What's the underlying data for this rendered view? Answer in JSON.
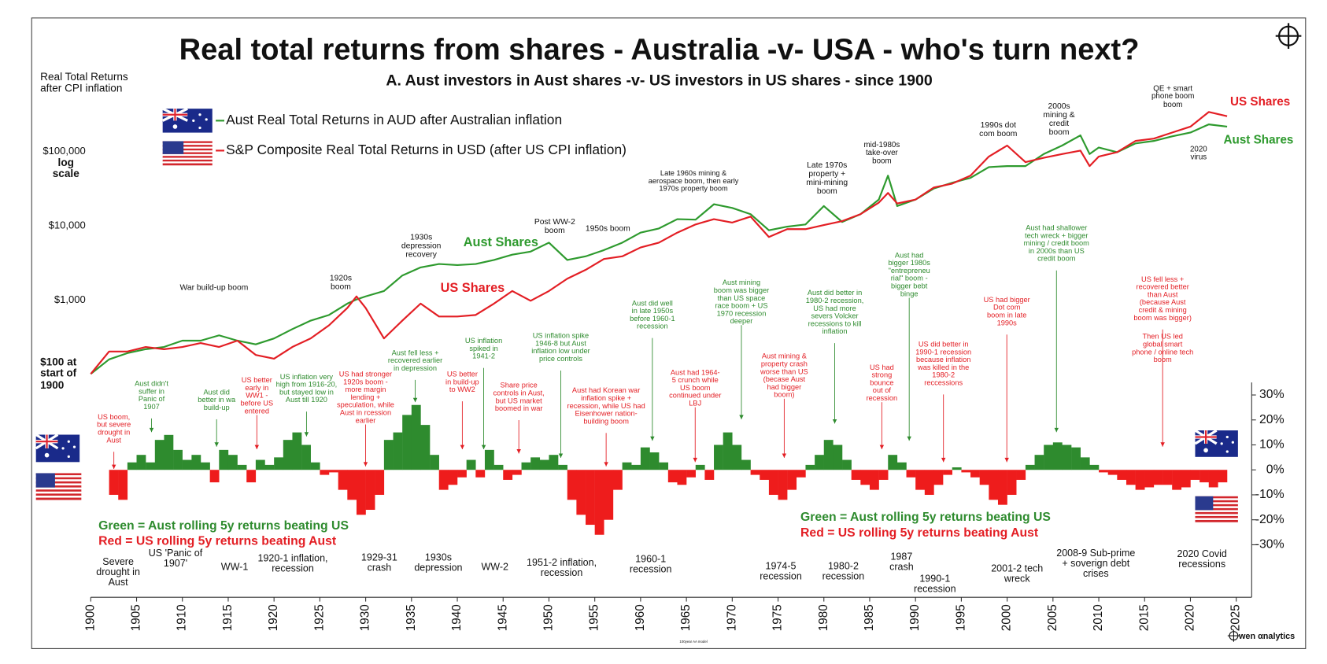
{
  "chart_data": [
    {
      "type": "line",
      "title": "Real total returns from shares - Australia -v- USA - who's turn next?",
      "subtitle": "A. Aust investors in Aust shares -v- US investors in US shares  - since 1900",
      "y_axis_label": "Real Total Returns after CPI inflation",
      "y_axis_note": "log scale",
      "log_scale": true,
      "x": [
        1900,
        1902,
        1904,
        1906,
        1908,
        1910,
        1912,
        1914,
        1916,
        1918,
        1920,
        1922,
        1924,
        1926,
        1928,
        1929,
        1930,
        1932,
        1934,
        1936,
        1938,
        1940,
        1942,
        1944,
        1946,
        1948,
        1950,
        1952,
        1954,
        1956,
        1958,
        1960,
        1962,
        1964,
        1966,
        1968,
        1970,
        1972,
        1974,
        1976,
        1978,
        1980,
        1982,
        1984,
        1986,
        1987,
        1988,
        1990,
        1992,
        1994,
        1996,
        1998,
        2000,
        2002,
        2004,
        2006,
        2008,
        2009,
        2010,
        2012,
        2014,
        2016,
        2018,
        2020,
        2022,
        2024
      ],
      "xlim": [
        1900,
        2025
      ],
      "xticks": [
        1900,
        1905,
        1910,
        1915,
        1920,
        1925,
        1930,
        1935,
        1940,
        1945,
        1950,
        1955,
        1960,
        1965,
        1970,
        1975,
        1980,
        1985,
        1990,
        1995,
        2000,
        2005,
        2010,
        2015,
        2020,
        2025
      ],
      "ylim": [
        0.1,
        1000000
      ],
      "yticks": [
        {
          "value": 100,
          "label": "$100 at start of 1900"
        },
        {
          "value": 1000,
          "label": "$1,000"
        },
        {
          "value": 10000,
          "label": "$10,000"
        },
        {
          "value": 100000,
          "label": "$100,000"
        }
      ],
      "series": [
        {
          "name": "Aust Real Total Returns in AUD after Australian inflation",
          "color": "#2e9a2e",
          "values": [
            100,
            157,
            190,
            215,
            230,
            280,
            280,
            330,
            280,
            250,
            300,
            400,
            520,
            620,
            880,
            1000,
            1100,
            1300,
            2100,
            2700,
            3000,
            2900,
            3000,
            3400,
            4000,
            4400,
            5800,
            3400,
            3800,
            4600,
            5800,
            7900,
            9000,
            12000,
            11800,
            19000,
            17000,
            14000,
            8500,
            9500,
            10200,
            18000,
            11000,
            14000,
            22000,
            46000,
            18000,
            22000,
            31000,
            37000,
            43000,
            60000,
            62000,
            62000,
            90000,
            117000,
            160000,
            90000,
            110000,
            95000,
            125000,
            135000,
            155000,
            175000,
            225000,
            210000
          ]
        },
        {
          "name": "S&P Composite Real Total Returns in USD (after US CPI inflation)",
          "color": "#e31e24",
          "values": [
            100,
            200,
            200,
            230,
            215,
            230,
            260,
            230,
            280,
            180,
            160,
            230,
            300,
            450,
            770,
            1100,
            770,
            300,
            520,
            880,
            590,
            590,
            620,
            880,
            1300,
            960,
            1300,
            1900,
            2500,
            3500,
            3800,
            5000,
            5800,
            7900,
            10200,
            12000,
            10800,
            13000,
            6900,
            8800,
            8800,
            10000,
            11300,
            14000,
            20000,
            27000,
            19500,
            22000,
            32000,
            36000,
            46000,
            83000,
            117000,
            70000,
            80000,
            90000,
            100000,
            62000,
            83000,
            95000,
            135000,
            145000,
            175000,
            210000,
            330000,
            290000
          ]
        }
      ],
      "annotations": [
        {
          "text": "War build-up boom",
          "color": "#111111"
        },
        {
          "text": "1920s boom",
          "color": "#111111"
        },
        {
          "text": "1930s depression recovery",
          "color": "#111111"
        },
        {
          "text": "Post WW-2 boom",
          "color": "#111111"
        },
        {
          "text": "1950s boom",
          "color": "#111111"
        },
        {
          "text": "Late 1960s mining & aerospace boom, then early 1970s property boom",
          "color": "#111111"
        },
        {
          "text": "Late 1970s property + mini-mining boom",
          "color": "#111111"
        },
        {
          "text": "mid-1980s take-over boom",
          "color": "#111111"
        },
        {
          "text": "1990s dot com boom",
          "color": "#111111"
        },
        {
          "text": "2000s mining & credit boom",
          "color": "#111111"
        },
        {
          "text": "QE + smart phone boom boom",
          "color": "#111111"
        },
        {
          "text": "2020 virus",
          "color": "#111111"
        },
        {
          "text": "Aust Shares",
          "color": "#2e9a2e"
        },
        {
          "text": "US Shares",
          "color": "#e31e24"
        },
        {
          "text": "US Shares",
          "color": "#e31e24"
        },
        {
          "text": "Aust Shares",
          "color": "#2e9a2e"
        }
      ],
      "footer_note": "100year AA model",
      "logo": "wen αnalytics"
    },
    {
      "type": "bar",
      "x": [
        1902,
        1903,
        1904,
        1905,
        1906,
        1907,
        1908,
        1909,
        1910,
        1911,
        1912,
        1913,
        1914,
        1915,
        1916,
        1917,
        1918,
        1919,
        1920,
        1921,
        1922,
        1923,
        1924,
        1925,
        1926,
        1927,
        1928,
        1929,
        1930,
        1931,
        1932,
        1933,
        1934,
        1935,
        1936,
        1937,
        1938,
        1939,
        1940,
        1941,
        1942,
        1943,
        1944,
        1945,
        1946,
        1947,
        1948,
        1949,
        1950,
        1951,
        1952,
        1953,
        1954,
        1955,
        1956,
        1957,
        1958,
        1959,
        1960,
        1961,
        1962,
        1963,
        1964,
        1965,
        1966,
        1967,
        1968,
        1969,
        1970,
        1971,
        1972,
        1973,
        1974,
        1975,
        1976,
        1977,
        1978,
        1979,
        1980,
        1981,
        1982,
        1983,
        1984,
        1985,
        1986,
        1987,
        1988,
        1989,
        1990,
        1991,
        1992,
        1993,
        1994,
        1995,
        1996,
        1997,
        1998,
        1999,
        2000,
        2001,
        2002,
        2003,
        2004,
        2005,
        2006,
        2007,
        2008,
        2009,
        2010,
        2011,
        2012,
        2013,
        2014,
        2015,
        2016,
        2017,
        2018,
        2019,
        2020,
        2021,
        2022,
        2023
      ],
      "values": [
        -10,
        -12,
        3,
        6,
        3,
        12,
        14,
        8,
        4,
        6,
        3,
        -5,
        8,
        6,
        2,
        -5,
        4,
        2,
        5,
        12,
        15,
        10,
        3,
        -2,
        -1,
        -8,
        -12,
        -18,
        -16,
        -10,
        12,
        15,
        22,
        26,
        18,
        6,
        -8,
        -6,
        -3,
        4,
        -3,
        8,
        2,
        -4,
        -2,
        3,
        5,
        4,
        6,
        2,
        -12,
        -18,
        -22,
        -26,
        -20,
        -8,
        3,
        2,
        9,
        7,
        3,
        -5,
        -6,
        -3,
        2,
        -4,
        10,
        15,
        10,
        4,
        -2,
        -4,
        -10,
        -12,
        -8,
        -3,
        2,
        6,
        12,
        10,
        4,
        -4,
        -6,
        -8,
        -4,
        6,
        3,
        -3,
        -8,
        -10,
        -6,
        -2,
        1,
        -1,
        -3,
        -6,
        -12,
        -14,
        -10,
        -4,
        2,
        6,
        10,
        11,
        10,
        9,
        5,
        2,
        -1,
        -2,
        -4,
        -6,
        -8,
        -7,
        -6,
        -6,
        -8,
        -7,
        -4,
        -5,
        -7,
        -5
      ],
      "positive_color": "#2e8b2e",
      "negative_color": "#ee1c1c",
      "xlim": [
        1900,
        2025
      ],
      "ylim": [
        -50,
        35
      ],
      "yticks": [
        {
          "value": -30,
          "label": "-30%"
        },
        {
          "value": -20,
          "label": "-20%"
        },
        {
          "value": -10,
          "label": "-10%"
        },
        {
          "value": 0,
          "label": "0%"
        },
        {
          "value": 10,
          "label": "10%"
        },
        {
          "value": 20,
          "label": "20%"
        },
        {
          "value": 30,
          "label": "30%"
        }
      ],
      "legend": [
        {
          "text": "Green = Aust rolling 5y returns beating US",
          "color": "#2e8b2e"
        },
        {
          "text": "Red = US rolling 5y returns beating Aust",
          "color": "#e31e24"
        }
      ],
      "annotations": [
        {
          "text": "US boom, but severe drought in Aust",
          "color": "#e31e24"
        },
        {
          "text": "Aust didn't suffer in Panic of 1907",
          "color": "#2e8b2e"
        },
        {
          "text": "Aust did better in wa build-up",
          "color": "#2e8b2e"
        },
        {
          "text": "US better early in WW1 - before US entered",
          "color": "#e31e24"
        },
        {
          "text": "US inflation very high from 1916-20, but stayed low in Aust till 1920",
          "color": "#2e8b2e"
        },
        {
          "text": "US had stronger 1920s boom - more margin lending + speculation, while Aust in rcession earlier",
          "color": "#e31e24"
        },
        {
          "text": "Aust fell less + recovered earlier in depression",
          "color": "#2e8b2e"
        },
        {
          "text": "US better in build-up to WW2",
          "color": "#e31e24"
        },
        {
          "text": "US inflation spiked in 1941-2",
          "color": "#2e8b2e"
        },
        {
          "text": "Share price controls in Aust, but US market boomed in war",
          "color": "#e31e24"
        },
        {
          "text": "US inflation spike 1946-8 but Aust inflation low under price controls",
          "color": "#2e8b2e"
        },
        {
          "text": "Aust had Korean war inflation spike + recession, while US had Eisenhower nation-building boom",
          "color": "#e31e24"
        },
        {
          "text": "Aust did well in late 1950s before 1960-1 recession",
          "color": "#2e8b2e"
        },
        {
          "text": "Aust had 1964-5 crunch while US boom continued under LBJ",
          "color": "#e31e24"
        },
        {
          "text": "Aust mining boom was bigger than US space race boom + US 1970 recession deeper",
          "color": "#2e8b2e"
        },
        {
          "text": "Aust mining & property crash worse than US (becase Aust had bigger boom)",
          "color": "#e31e24"
        },
        {
          "text": "Aust did better in 1980-2 recession, US had more severs Volcker recessions to kill inflation",
          "color": "#2e8b2e"
        },
        {
          "text": "US had strong bounce out of recession",
          "color": "#e31e24"
        },
        {
          "text": "Aust had bigger 1980s \"entrepreneu rial\" boom - bigger bebt binge",
          "color": "#2e8b2e"
        },
        {
          "text": "US did better in 1990-1 recession because inflation was killed in the 1980-2 reccessions",
          "color": "#e31e24"
        },
        {
          "text": "US had bigger Dot com boom in late 1990s",
          "color": "#e31e24"
        },
        {
          "text": "Aust had shallower tech wreck + bigger mining / credit boom in 2000s than US credit boom",
          "color": "#2e8b2e"
        },
        {
          "text": "US fell less + recovered better than Aust (because Aust credit & mining boom was bigger)",
          "color": "#e31e24"
        },
        {
          "text": "Then US led global smart phone / online tech boom",
          "color": "#e31e24"
        }
      ],
      "event_labels": [
        "Severe drought in Aust",
        "US 'Panic of 1907'",
        "WW-1",
        "1920-1 inflation, recession",
        "1929-31 crash",
        "1930s depression",
        "WW-2",
        "1951-2 inflation, recession",
        "1960-1 recession",
        "1974-5 recession",
        "1980-2 recession",
        "1987 crash",
        "1990-1 recession",
        "2001-2 tech wreck",
        "2008-9 Sub-prime + soverign debt crises",
        "2020 Covid recessions"
      ]
    }
  ]
}
